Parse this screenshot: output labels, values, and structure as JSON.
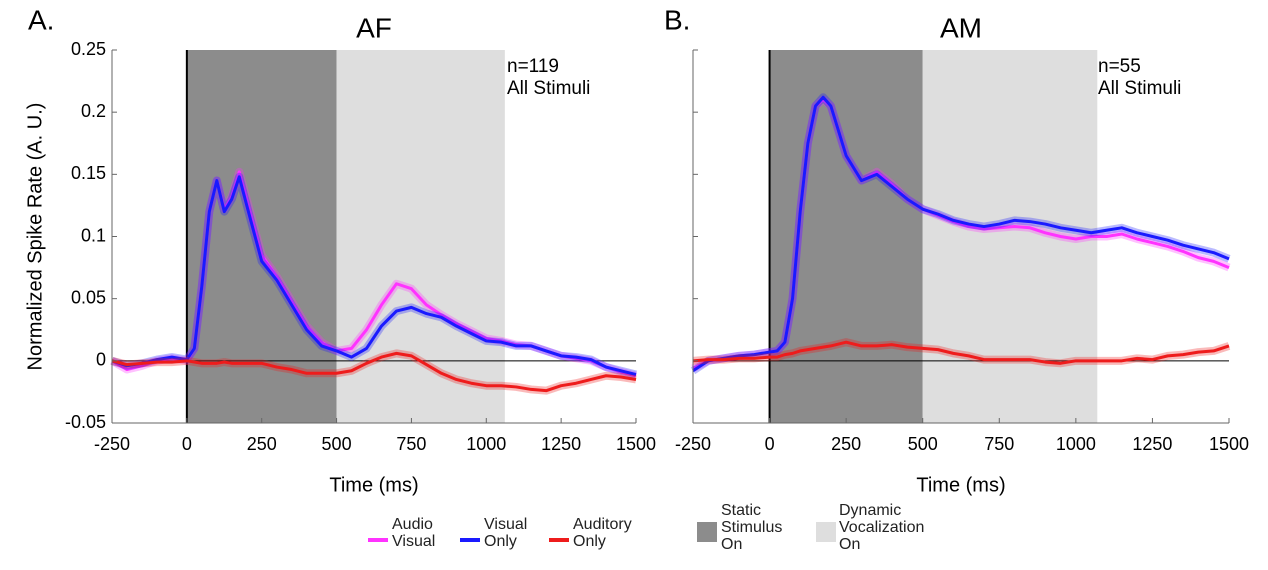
{
  "chart_data": [
    {
      "type": "line",
      "panel": "A.",
      "title": "AF",
      "annotations": [
        "n=119",
        "All Stimuli"
      ],
      "ylabel": "Normalized Spike Rate (A. U.)",
      "xlabel": "Time (ms)",
      "xlim": [
        -250,
        1500
      ],
      "xticks": [
        -250,
        0,
        250,
        500,
        750,
        1000,
        1250,
        1500
      ],
      "ylim": [
        -0.05,
        0.25
      ],
      "yticks": [
        -0.05,
        0,
        0.05,
        0.1,
        0.15,
        0.2,
        0.25
      ],
      "ytick_labels": true,
      "hline": 0,
      "vline": 0,
      "bands": [
        {
          "name": "Static Stimulus On",
          "start": 0,
          "end": 500,
          "color": "#8c8c8c"
        },
        {
          "name": "Dynamic Vocalization On",
          "start": 500,
          "end": 1062,
          "color": "#dedede"
        }
      ],
      "x": [
        -250,
        -200,
        -150,
        -100,
        -50,
        0,
        25,
        50,
        75,
        100,
        125,
        150,
        175,
        200,
        250,
        300,
        350,
        400,
        450,
        500,
        550,
        600,
        650,
        700,
        750,
        800,
        850,
        900,
        950,
        1000,
        1050,
        1100,
        1150,
        1200,
        1250,
        1300,
        1350,
        1400,
        1450,
        1500
      ],
      "series": [
        {
          "name": "Audio Visual",
          "color": "#ff33ff",
          "values": [
            0,
            -0.007,
            -0.004,
            0,
            0.002,
            0,
            0.01,
            0.06,
            0.12,
            0.145,
            0.122,
            0.132,
            0.152,
            0.13,
            0.085,
            0.068,
            0.048,
            0.028,
            0.015,
            0.008,
            0.01,
            0.025,
            0.045,
            0.062,
            0.058,
            0.045,
            0.037,
            0.03,
            0.024,
            0.018,
            0.016,
            0.013,
            0.012,
            0.008,
            0.004,
            0.002,
            0,
            -0.005,
            -0.009,
            -0.012
          ]
        },
        {
          "name": "Visual Only",
          "color": "#1a1aff",
          "values": [
            0,
            -0.004,
            -0.002,
            0.001,
            0.003,
            0.001,
            0.01,
            0.06,
            0.12,
            0.145,
            0.12,
            0.13,
            0.148,
            0.125,
            0.08,
            0.065,
            0.045,
            0.025,
            0.012,
            0.008,
            0.003,
            0.01,
            0.028,
            0.04,
            0.043,
            0.038,
            0.035,
            0.028,
            0.022,
            0.016,
            0.015,
            0.012,
            0.012,
            0.008,
            0.004,
            0.003,
            0.001,
            -0.005,
            -0.008,
            -0.011
          ]
        },
        {
          "name": "Auditory Only",
          "color": "#ee1c1c",
          "values": [
            0,
            -0.003,
            -0.002,
            -0.001,
            -0.001,
            0,
            -0.001,
            -0.002,
            -0.002,
            -0.002,
            -0.001,
            -0.002,
            -0.002,
            -0.002,
            -0.002,
            -0.005,
            -0.007,
            -0.01,
            -0.01,
            -0.01,
            -0.008,
            -0.002,
            0.003,
            0.006,
            0.004,
            -0.003,
            -0.01,
            -0.015,
            -0.018,
            -0.02,
            -0.02,
            -0.021,
            -0.023,
            -0.024,
            -0.02,
            -0.018,
            -0.015,
            -0.012,
            -0.013,
            -0.015
          ]
        }
      ]
    },
    {
      "type": "line",
      "panel": "B.",
      "title": "AM",
      "annotations": [
        "n=55",
        "All Stimuli"
      ],
      "xlabel": "Time (ms)",
      "xlim": [
        -250,
        1500
      ],
      "xticks": [
        -250,
        0,
        250,
        500,
        750,
        1000,
        1250,
        1500
      ],
      "ylim": [
        -0.05,
        0.25
      ],
      "yticks": [
        -0.05,
        0,
        0.05,
        0.1,
        0.15,
        0.2,
        0.25
      ],
      "ytick_labels": false,
      "hline": 0,
      "vline": 0,
      "bands": [
        {
          "start": 0,
          "end": 500,
          "color": "#8c8c8c"
        },
        {
          "start": 500,
          "end": 1070,
          "color": "#dedede"
        }
      ],
      "x": [
        -250,
        -200,
        -150,
        -100,
        -50,
        0,
        25,
        50,
        75,
        100,
        125,
        150,
        175,
        200,
        250,
        300,
        350,
        400,
        450,
        500,
        550,
        600,
        650,
        700,
        750,
        800,
        850,
        900,
        950,
        1000,
        1050,
        1100,
        1150,
        1200,
        1250,
        1300,
        1350,
        1400,
        1450,
        1500
      ],
      "series": [
        {
          "color": "#ff33ff",
          "values": [
            -0.006,
            0,
            0.002,
            0.004,
            0.005,
            0.007,
            0.008,
            0.015,
            0.05,
            0.12,
            0.175,
            0.205,
            0.21,
            0.205,
            0.165,
            0.145,
            0.152,
            0.142,
            0.13,
            0.122,
            0.117,
            0.112,
            0.108,
            0.106,
            0.107,
            0.108,
            0.107,
            0.103,
            0.1,
            0.098,
            0.1,
            0.1,
            0.102,
            0.098,
            0.095,
            0.092,
            0.088,
            0.083,
            0.08,
            0.075
          ]
        },
        {
          "color": "#1a1aff",
          "values": [
            -0.008,
            0,
            0.002,
            0.004,
            0.005,
            0.007,
            0.008,
            0.015,
            0.05,
            0.12,
            0.175,
            0.205,
            0.212,
            0.205,
            0.165,
            0.145,
            0.15,
            0.14,
            0.13,
            0.122,
            0.118,
            0.113,
            0.11,
            0.108,
            0.11,
            0.113,
            0.112,
            0.11,
            0.107,
            0.105,
            0.103,
            0.105,
            0.107,
            0.103,
            0.1,
            0.097,
            0.093,
            0.09,
            0.087,
            0.082
          ]
        },
        {
          "color": "#ee1c1c",
          "values": [
            0,
            0.001,
            0.001,
            0.002,
            0.002,
            0.003,
            0.003,
            0.005,
            0.006,
            0.008,
            0.009,
            0.01,
            0.011,
            0.012,
            0.015,
            0.012,
            0.012,
            0.013,
            0.011,
            0.01,
            0.009,
            0.006,
            0.004,
            0.001,
            0.001,
            0.001,
            0.001,
            -0.001,
            -0.002,
            0,
            0,
            0,
            0,
            0.002,
            0.001,
            0.004,
            0.005,
            0.007,
            0.008,
            0.012
          ]
        }
      ]
    }
  ]
}
